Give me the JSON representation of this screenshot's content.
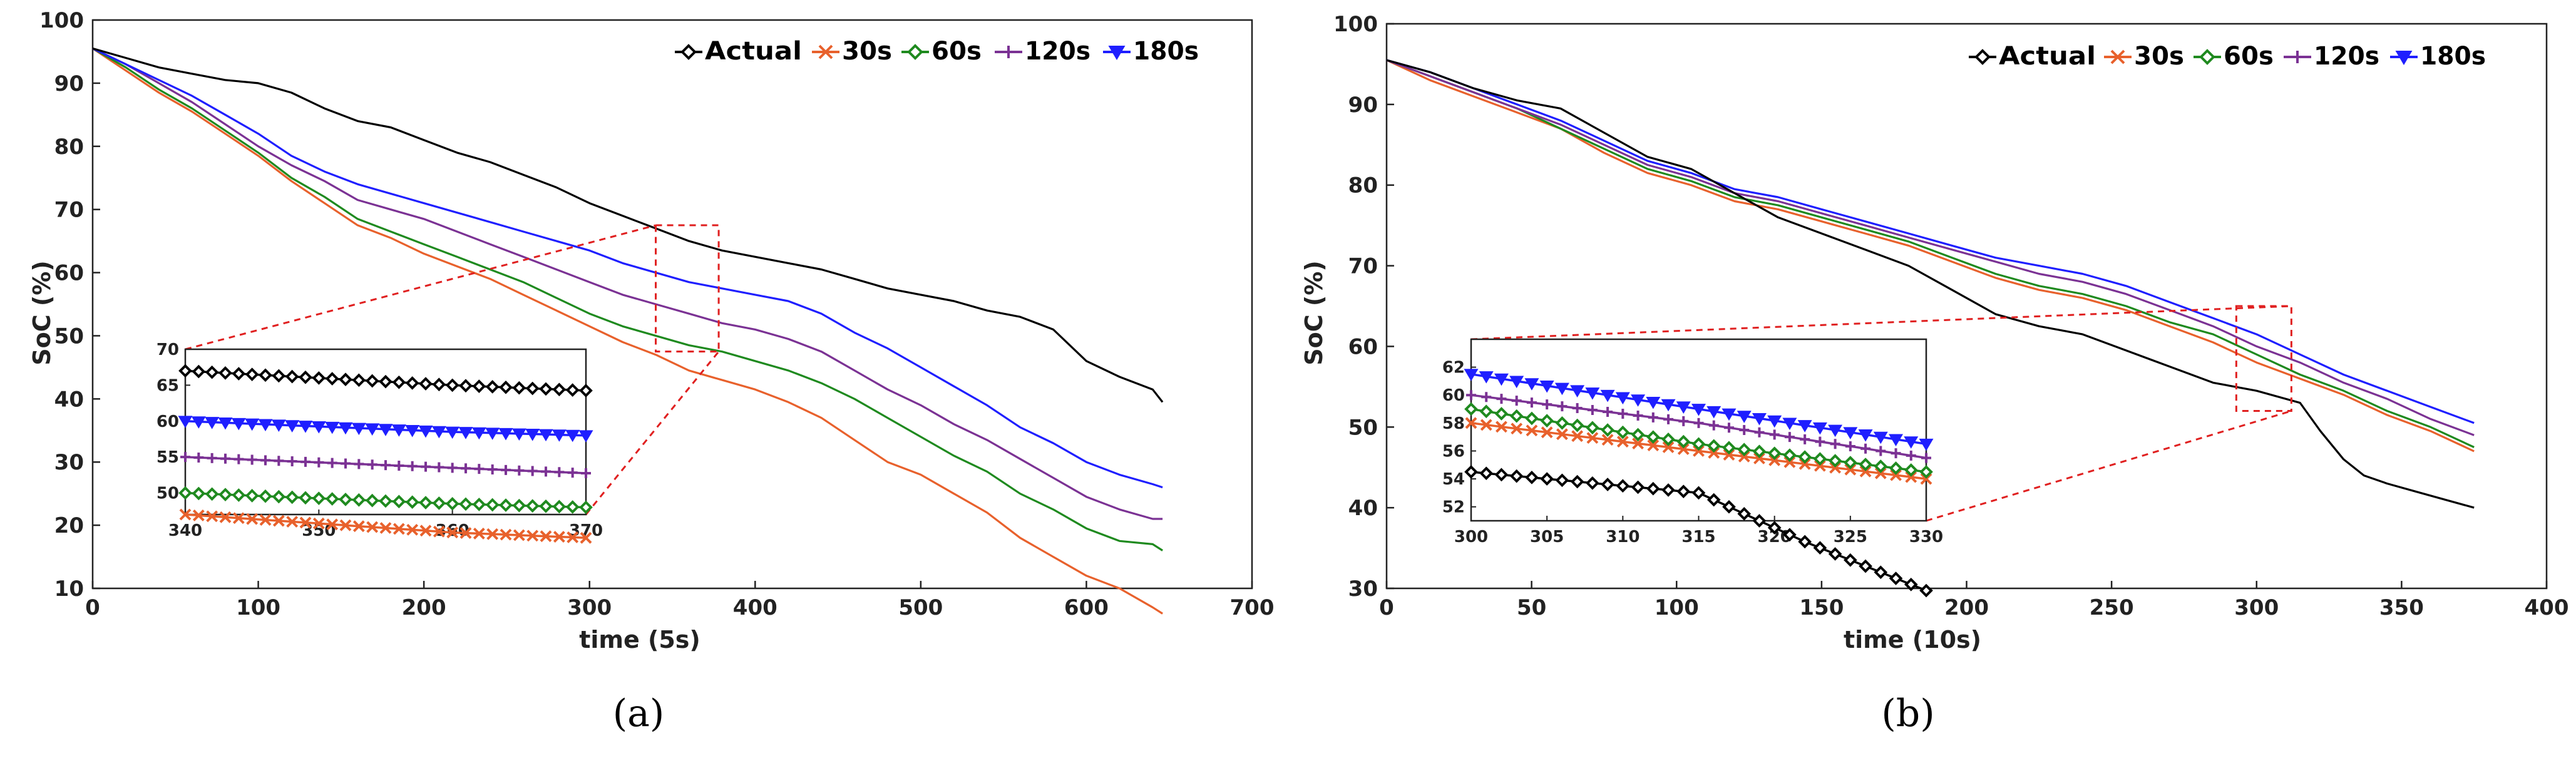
{
  "chart_data": [
    {
      "type": "line",
      "caption": "(a)",
      "xlabel": "time (5s)",
      "ylabel": "SoC (%)",
      "xlim": [
        0,
        700
      ],
      "ylim": [
        10,
        100
      ],
      "xticks": [
        0,
        100,
        200,
        300,
        400,
        500,
        600,
        700
      ],
      "yticks": [
        10,
        20,
        30,
        40,
        50,
        60,
        70,
        80,
        90,
        100
      ],
      "legend_position": "top-right",
      "series": [
        {
          "name": "Actual",
          "color": "#000000",
          "marker": "diamond",
          "x": [
            0,
            20,
            40,
            60,
            80,
            100,
            120,
            140,
            160,
            180,
            200,
            220,
            240,
            260,
            280,
            300,
            320,
            340,
            360,
            380,
            400,
            420,
            440,
            460,
            480,
            500,
            520,
            540,
            560,
            580,
            600,
            620,
            640,
            646
          ],
          "y": [
            95.5,
            94,
            92.5,
            91.5,
            90.5,
            90,
            88.5,
            86,
            84,
            83,
            81,
            79,
            77.5,
            75.5,
            73.5,
            71,
            69,
            67,
            65,
            63.5,
            62.5,
            61.5,
            60.5,
            59,
            57.5,
            56.5,
            55.5,
            54,
            53,
            51,
            46,
            43.5,
            41.5,
            39.5
          ]
        },
        {
          "name": "30s",
          "color": "#e8612c",
          "marker": "x",
          "x": [
            0,
            20,
            40,
            60,
            80,
            100,
            120,
            140,
            160,
            180,
            200,
            220,
            240,
            260,
            280,
            300,
            320,
            340,
            360,
            380,
            400,
            420,
            440,
            460,
            480,
            500,
            520,
            540,
            560,
            580,
            600,
            620,
            640,
            646
          ],
          "y": [
            95.5,
            92,
            88.5,
            85.5,
            82,
            78.5,
            74.5,
            71,
            67.5,
            65.5,
            63,
            61,
            59,
            56.5,
            54,
            51.5,
            49,
            47,
            44.5,
            43,
            41.5,
            39.5,
            37,
            33.5,
            30,
            28,
            25,
            22,
            18,
            15,
            12,
            10,
            7,
            6
          ]
        },
        {
          "name": "60s",
          "color": "#1f8a1f",
          "marker": "diamond",
          "x": [
            0,
            20,
            40,
            60,
            80,
            100,
            120,
            140,
            160,
            180,
            200,
            220,
            240,
            260,
            280,
            300,
            320,
            340,
            360,
            380,
            400,
            420,
            440,
            460,
            480,
            500,
            520,
            540,
            560,
            580,
            600,
            620,
            640,
            646
          ],
          "y": [
            95.5,
            92.5,
            89,
            86,
            82.5,
            79,
            75,
            72,
            68.5,
            66.5,
            64.5,
            62.5,
            60.5,
            58.5,
            56,
            53.5,
            51.5,
            50,
            48.5,
            47.5,
            46,
            44.5,
            42.5,
            40,
            37,
            34,
            31,
            28.5,
            25,
            22.5,
            19.5,
            17.5,
            17,
            16
          ]
        },
        {
          "name": "120s",
          "color": "#7b3294",
          "marker": "plus",
          "x": [
            0,
            20,
            40,
            60,
            80,
            100,
            120,
            140,
            160,
            180,
            200,
            220,
            240,
            260,
            280,
            300,
            320,
            340,
            360,
            380,
            400,
            420,
            440,
            460,
            480,
            500,
            520,
            540,
            560,
            580,
            600,
            620,
            640,
            646
          ],
          "y": [
            95.5,
            93,
            90,
            87,
            83.5,
            80,
            77,
            74.5,
            71.5,
            70,
            68.5,
            66.5,
            64.5,
            62.5,
            60.5,
            58.5,
            56.5,
            55,
            53.5,
            52,
            51,
            49.5,
            47.5,
            44.5,
            41.5,
            39,
            36,
            33.5,
            30.5,
            27.5,
            24.5,
            22.5,
            21,
            21
          ]
        },
        {
          "name": "180s",
          "color": "#1f1fff",
          "marker": "triangle-down",
          "x": [
            0,
            20,
            40,
            60,
            80,
            100,
            120,
            140,
            160,
            180,
            200,
            220,
            240,
            260,
            280,
            300,
            320,
            340,
            360,
            380,
            400,
            420,
            440,
            460,
            480,
            500,
            520,
            540,
            560,
            580,
            600,
            620,
            640,
            646
          ],
          "y": [
            95.5,
            93,
            90.5,
            88,
            85,
            82,
            78.5,
            76,
            74,
            72.5,
            71,
            69.5,
            68,
            66.5,
            65,
            63.5,
            61.5,
            60,
            58.5,
            57.5,
            56.5,
            55.5,
            53.5,
            50.5,
            48,
            45,
            42,
            39,
            35.5,
            33,
            30,
            28,
            26.5,
            26
          ]
        }
      ],
      "inset": {
        "xlim": [
          340,
          370
        ],
        "ylim": [
          47,
          70
        ],
        "xticks": [
          340,
          350,
          360,
          370
        ],
        "yticks": [
          50,
          55,
          60,
          65,
          70
        ],
        "zoom_box": {
          "x": [
            340,
            378
          ],
          "y": [
            47.5,
            67.5
          ]
        }
      }
    },
    {
      "type": "line",
      "caption": "(b)",
      "xlabel": "time (10s)",
      "ylabel": "SoC (%)",
      "xlim": [
        0,
        400
      ],
      "ylim": [
        30,
        100
      ],
      "xticks": [
        0,
        50,
        100,
        150,
        200,
        250,
        300,
        350,
        400
      ],
      "yticks": [
        30,
        40,
        50,
        60,
        70,
        80,
        90,
        100
      ],
      "legend_position": "top-right",
      "series": [
        {
          "name": "Actual",
          "color": "#000000",
          "marker": "diamond",
          "x": [
            0,
            15,
            30,
            45,
            60,
            75,
            90,
            105,
            120,
            135,
            150,
            165,
            180,
            195,
            210,
            225,
            240,
            255,
            270,
            285,
            300,
            315,
            322,
            330,
            337,
            345,
            355,
            365,
            375
          ],
          "y": [
            95.5,
            94,
            92,
            90.5,
            89.5,
            86.5,
            83.5,
            82,
            79,
            76,
            74,
            72,
            70,
            67,
            64,
            62.5,
            61.5,
            59.5,
            57.5,
            55.5,
            54.5,
            53,
            49.5,
            46,
            44,
            43,
            42,
            41,
            40
          ]
        },
        {
          "name": "30s",
          "color": "#e8612c",
          "marker": "x",
          "x": [
            0,
            15,
            30,
            45,
            60,
            75,
            90,
            105,
            120,
            135,
            150,
            165,
            180,
            195,
            210,
            225,
            240,
            255,
            270,
            285,
            300,
            315,
            330,
            345,
            360,
            375
          ],
          "y": [
            95.5,
            93,
            91,
            89,
            87,
            84,
            81.5,
            80,
            78,
            77,
            75.5,
            74,
            72.5,
            70.5,
            68.5,
            67,
            66,
            64.5,
            62.5,
            60.5,
            58,
            56,
            54,
            51.5,
            49.5,
            47
          ]
        },
        {
          "name": "60s",
          "color": "#1f8a1f",
          "marker": "diamond",
          "x": [
            0,
            15,
            30,
            45,
            60,
            75,
            90,
            105,
            120,
            135,
            150,
            165,
            180,
            195,
            210,
            225,
            240,
            255,
            270,
            285,
            300,
            315,
            330,
            345,
            360,
            375
          ],
          "y": [
            95.5,
            93.5,
            91.5,
            89.5,
            87,
            84.5,
            82,
            80.5,
            78.5,
            77.5,
            76,
            74.5,
            73,
            71,
            69,
            67.5,
            66.5,
            65,
            63,
            61.5,
            59,
            56.5,
            54.5,
            52,
            50,
            47.5
          ]
        },
        {
          "name": "120s",
          "color": "#7b3294",
          "marker": "plus",
          "x": [
            0,
            15,
            30,
            45,
            60,
            75,
            90,
            105,
            120,
            135,
            150,
            165,
            180,
            195,
            210,
            225,
            240,
            255,
            270,
            285,
            300,
            315,
            330,
            345,
            360,
            375
          ],
          "y": [
            95.5,
            93.5,
            91.5,
            89.5,
            87.5,
            85,
            82.5,
            81,
            79,
            78,
            76.5,
            75,
            73.5,
            72,
            70.5,
            69,
            68,
            66.5,
            64.5,
            62.5,
            60,
            58,
            55.5,
            53.5,
            51,
            49
          ]
        },
        {
          "name": "180s",
          "color": "#1f1fff",
          "marker": "triangle-down",
          "x": [
            0,
            15,
            30,
            45,
            60,
            75,
            90,
            105,
            120,
            135,
            150,
            165,
            180,
            195,
            210,
            225,
            240,
            255,
            270,
            285,
            300,
            315,
            330,
            345,
            360,
            375
          ],
          "y": [
            95.5,
            94,
            92,
            90,
            88,
            85.5,
            83,
            81.5,
            79.5,
            78.5,
            77,
            75.5,
            74,
            72.5,
            71,
            70,
            69,
            67.5,
            65.5,
            63.5,
            61.5,
            59,
            56.5,
            54.5,
            52.5,
            50.5
          ]
        }
      ],
      "inset": {
        "xlim": [
          300,
          330
        ],
        "ylim": [
          51,
          64
        ],
        "xticks": [
          300,
          305,
          310,
          315,
          320,
          325,
          330
        ],
        "yticks": [
          52,
          54,
          56,
          58,
          60,
          62
        ],
        "zoom_box": {
          "x": [
            293,
            312
          ],
          "y": [
            52,
            65
          ]
        }
      }
    }
  ]
}
